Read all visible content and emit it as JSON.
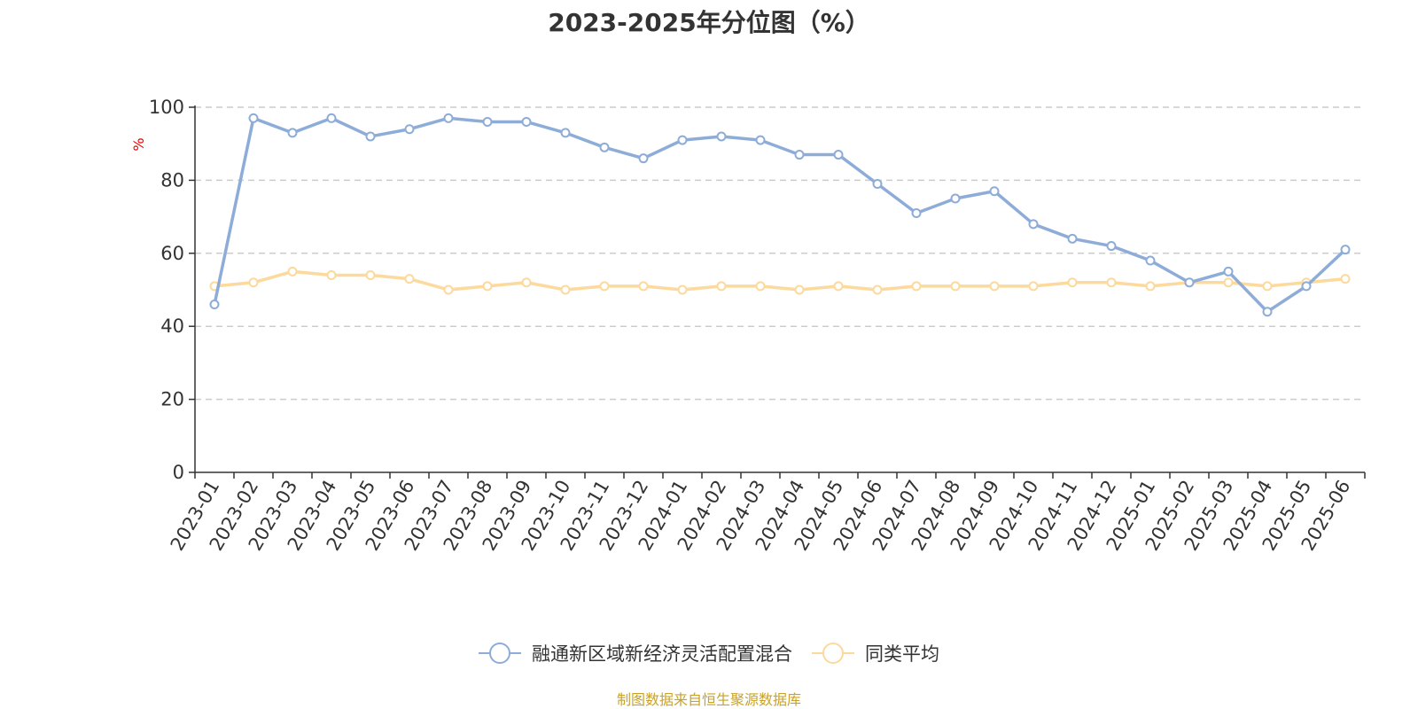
{
  "chart_data": {
    "type": "line",
    "title": "2023-2025年分位图（%）",
    "ylabel": "%",
    "xlabel": "",
    "ylim": [
      0,
      100
    ],
    "yticks": [
      0,
      20,
      40,
      60,
      80,
      100
    ],
    "grid": "horizontal-dashed",
    "legend_position": "bottom",
    "source_note": "制图数据来自恒生聚源数据库",
    "categories": [
      "2023-01",
      "2023-02",
      "2023-03",
      "2023-04",
      "2023-05",
      "2023-06",
      "2023-07",
      "2023-08",
      "2023-09",
      "2023-10",
      "2023-11",
      "2023-12",
      "2024-01",
      "2024-02",
      "2024-03",
      "2024-04",
      "2024-05",
      "2024-06",
      "2024-07",
      "2024-08",
      "2024-09",
      "2024-10",
      "2024-11",
      "2024-12",
      "2025-01",
      "2025-02",
      "2025-03",
      "2025-04",
      "2025-05",
      "2025-06"
    ],
    "series": [
      {
        "name": "融通新区域新经济灵活配置混合",
        "color": "#8eacd8",
        "values": [
          46,
          97,
          93,
          97,
          92,
          94,
          97,
          96,
          96,
          93,
          89,
          86,
          91,
          92,
          91,
          87,
          87,
          79,
          71,
          75,
          77,
          68,
          64,
          62,
          58,
          52,
          55,
          44,
          51,
          61
        ]
      },
      {
        "name": "同类平均",
        "color": "#fcd99c",
        "values": [
          51,
          52,
          55,
          54,
          54,
          53,
          50,
          51,
          52,
          50,
          51,
          51,
          50,
          51,
          51,
          50,
          51,
          50,
          51,
          51,
          51,
          51,
          52,
          52,
          51,
          52,
          52,
          51,
          52,
          53
        ]
      }
    ]
  },
  "style": {
    "axis_color": "#333333",
    "grid_color": "#cccccc",
    "ylabel_color": "#e60000",
    "source_color": "#c9a227"
  }
}
